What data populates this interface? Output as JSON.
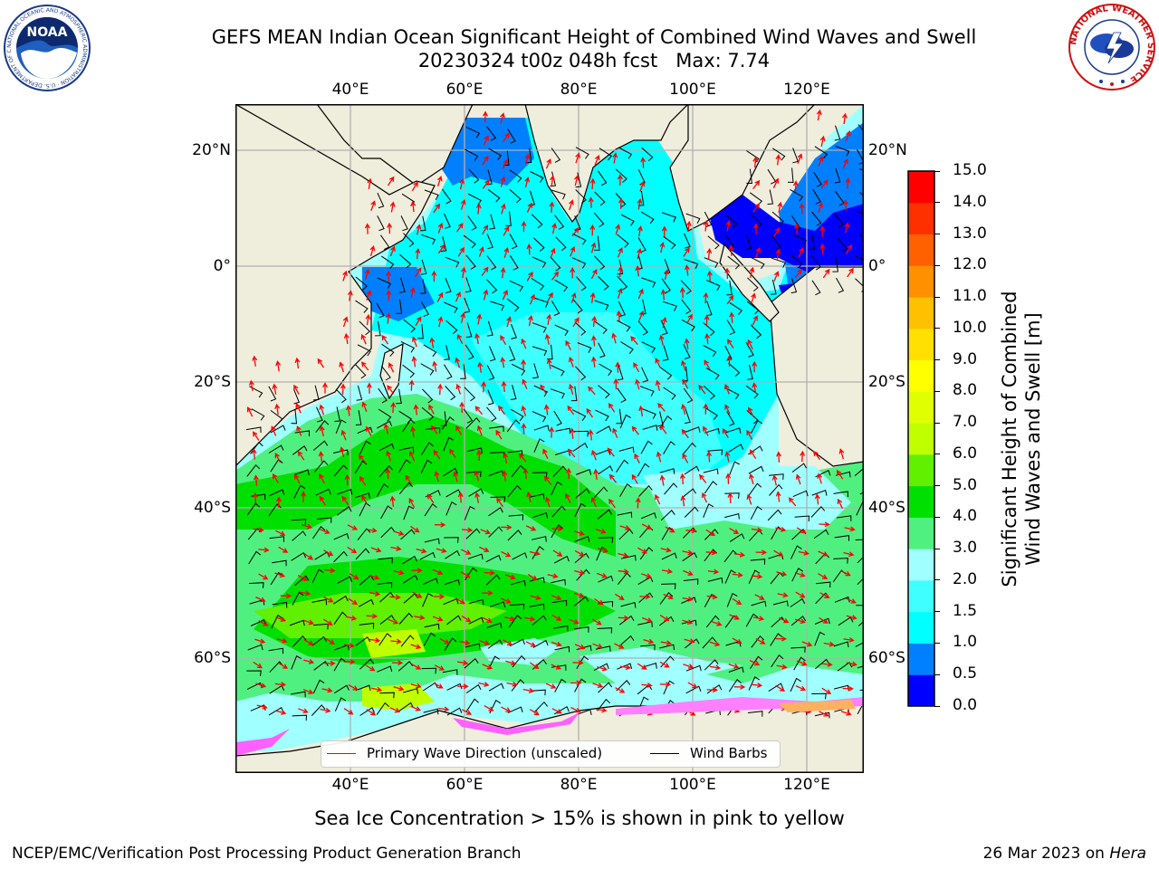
{
  "title": {
    "line1": "GEFS MEAN Indian Ocean Significant Height of Combined Wind Waves and Swell",
    "line2": "20230324 t00z 048h fcst   Max: 7.74"
  },
  "logos": {
    "noaa_text": "NOAA",
    "noaa_ring": "NATIONAL OCEANIC AND ATMOSPHERIC ADMINISTRATION · U.S. DEPARTMENT OF COMMERCE",
    "nws_ring": "NATIONAL WEATHER SERVICE"
  },
  "map": {
    "lon_ticks": [
      "40°E",
      "60°E",
      "80°E",
      "100°E",
      "120°E"
    ],
    "lat_ticks": [
      "20°N",
      "0°",
      "20°S",
      "40°S",
      "60°S"
    ],
    "legend": {
      "wave": {
        "label": "Primary Wave Direction (unscaled)",
        "color": "#ff0000"
      },
      "wind": {
        "label": "Wind Barbs",
        "color": "#000000"
      }
    }
  },
  "colorbar": {
    "label_line1": "Significant Height of Combined",
    "label_line2": "Wind Waves and Swell [m]",
    "ticks": [
      "0.0",
      "0.5",
      "1.0",
      "1.5",
      "2.0",
      "3.0",
      "4.0",
      "5.0",
      "6.0",
      "7.0",
      "8.0",
      "9.0",
      "10.0",
      "11.0",
      "12.0",
      "13.0",
      "14.0",
      "15.0"
    ],
    "colors": [
      "#0000ff",
      "#0080ff",
      "#00ffff",
      "#40ffff",
      "#a0ffff",
      "#50f080",
      "#00e000",
      "#60f000",
      "#c0ff00",
      "#e0ff00",
      "#ffff00",
      "#ffe000",
      "#ffc000",
      "#ff9000",
      "#ff6000",
      "#ff3000",
      "#ff0000"
    ]
  },
  "caption": "Sea Ice Concentration > 15% is shown in pink to yellow",
  "footer": {
    "left": "NCEP/EMC/Verification Post Processing Product Generation Branch",
    "right_date": "26 Mar 2023 on ",
    "right_host": "Hera"
  }
}
